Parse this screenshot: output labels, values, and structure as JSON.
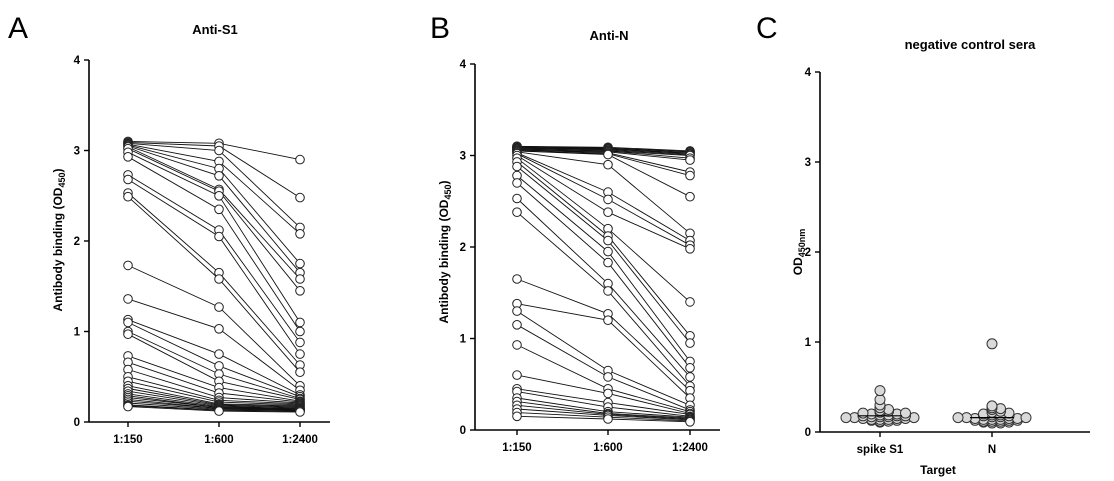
{
  "panels": [
    {
      "letter": "A",
      "title": "Anti-S1",
      "ylabel": "Antibody binding (OD",
      "ylabel_sub": "450",
      "ylabel_end": ")"
    },
    {
      "letter": "B",
      "title": "Anti-N",
      "ylabel": "Antibody binding (OD",
      "ylabel_sub": "450",
      "ylabel_end": ")"
    },
    {
      "letter": "C",
      "title": "negative control sera",
      "ylabel": "OD",
      "ylabel_sub": "450nm",
      "ylabel_end": "",
      "xlabel": "Target"
    }
  ],
  "chart_data": [
    {
      "type": "line",
      "title": "Anti-S1",
      "ylabel": "Antibody binding (OD450)",
      "xlabel": "",
      "categories": [
        "1:150",
        "1:600",
        "1:2400"
      ],
      "ylim": [
        0,
        4
      ],
      "yticks": [
        0,
        1,
        2,
        3,
        4
      ],
      "marker": "open circle",
      "grid": false,
      "series": [
        {
          "values": [
            3.1,
            3.08,
            2.9
          ]
        },
        {
          "values": [
            3.09,
            3.05,
            2.48
          ]
        },
        {
          "values": [
            3.08,
            3.0,
            2.15
          ]
        },
        {
          "values": [
            3.07,
            2.88,
            2.08
          ]
        },
        {
          "values": [
            3.06,
            2.8,
            1.75
          ]
        },
        {
          "values": [
            3.05,
            2.72,
            1.65
          ]
        },
        {
          "values": [
            3.04,
            2.57,
            1.58
          ]
        },
        {
          "values": [
            3.02,
            2.55,
            1.45
          ]
        },
        {
          "values": [
            2.98,
            2.5,
            1.1
          ]
        },
        {
          "values": [
            2.93,
            2.35,
            1.0
          ]
        },
        {
          "values": [
            2.73,
            2.12,
            0.88
          ]
        },
        {
          "values": [
            2.68,
            2.05,
            0.75
          ]
        },
        {
          "values": [
            2.53,
            1.65,
            0.63
          ]
        },
        {
          "values": [
            2.49,
            1.58,
            0.55
          ]
        },
        {
          "values": [
            1.73,
            1.27,
            0.4
          ]
        },
        {
          "values": [
            1.36,
            1.03,
            0.35
          ]
        },
        {
          "values": [
            1.13,
            0.75,
            0.3
          ]
        },
        {
          "values": [
            1.1,
            0.62,
            0.28
          ]
        },
        {
          "values": [
            1.0,
            0.53,
            0.26
          ]
        },
        {
          "values": [
            0.97,
            0.45,
            0.25
          ]
        },
        {
          "values": [
            0.73,
            0.38,
            0.23
          ]
        },
        {
          "values": [
            0.66,
            0.32,
            0.22
          ]
        },
        {
          "values": [
            0.58,
            0.27,
            0.21
          ]
        },
        {
          "values": [
            0.5,
            0.24,
            0.2
          ]
        },
        {
          "values": [
            0.45,
            0.22,
            0.19
          ]
        },
        {
          "values": [
            0.4,
            0.2,
            0.18
          ]
        },
        {
          "values": [
            0.37,
            0.19,
            0.17
          ]
        },
        {
          "values": [
            0.34,
            0.18,
            0.16
          ]
        },
        {
          "values": [
            0.31,
            0.17,
            0.15
          ]
        },
        {
          "values": [
            0.29,
            0.16,
            0.15
          ]
        },
        {
          "values": [
            0.27,
            0.16,
            0.14
          ]
        },
        {
          "values": [
            0.25,
            0.15,
            0.14
          ]
        },
        {
          "values": [
            0.23,
            0.15,
            0.13
          ]
        },
        {
          "values": [
            0.21,
            0.14,
            0.13
          ]
        },
        {
          "values": [
            0.19,
            0.13,
            0.12
          ]
        },
        {
          "values": [
            0.18,
            0.13,
            0.12
          ]
        },
        {
          "values": [
            0.17,
            0.12,
            0.11
          ]
        }
      ]
    },
    {
      "type": "line",
      "title": "Anti-N",
      "ylabel": "Antibody binding (OD450)",
      "xlabel": "",
      "categories": [
        "1:150",
        "1:600",
        "1:2400"
      ],
      "ylim": [
        0,
        4
      ],
      "yticks": [
        0,
        1,
        2,
        3,
        4
      ],
      "marker": "open circle",
      "grid": false,
      "series": [
        {
          "values": [
            3.1,
            3.09,
            3.05
          ]
        },
        {
          "values": [
            3.1,
            3.08,
            3.04
          ]
        },
        {
          "values": [
            3.09,
            3.08,
            3.04
          ]
        },
        {
          "values": [
            3.09,
            3.07,
            3.03
          ]
        },
        {
          "values": [
            3.08,
            3.07,
            3.02
          ]
        },
        {
          "values": [
            3.08,
            3.06,
            3.01
          ]
        },
        {
          "values": [
            3.07,
            3.05,
            3.0
          ]
        },
        {
          "values": [
            3.07,
            3.05,
            2.97
          ]
        },
        {
          "values": [
            3.06,
            3.04,
            2.95
          ]
        },
        {
          "values": [
            3.06,
            3.03,
            2.82
          ]
        },
        {
          "values": [
            3.05,
            3.02,
            2.78
          ]
        },
        {
          "values": [
            3.05,
            3.01,
            2.55
          ]
        },
        {
          "values": [
            3.04,
            2.9,
            2.15
          ]
        },
        {
          "values": [
            3.03,
            2.6,
            2.07
          ]
        },
        {
          "values": [
            3.02,
            2.52,
            2.02
          ]
        },
        {
          "values": [
            3.0,
            2.38,
            1.98
          ]
        },
        {
          "values": [
            2.97,
            2.2,
            1.4
          ]
        },
        {
          "values": [
            2.93,
            2.12,
            1.03
          ]
        },
        {
          "values": [
            2.88,
            2.07,
            0.95
          ]
        },
        {
          "values": [
            2.78,
            1.95,
            0.75
          ]
        },
        {
          "values": [
            2.7,
            1.83,
            0.68
          ]
        },
        {
          "values": [
            2.53,
            1.6,
            0.58
          ]
        },
        {
          "values": [
            2.38,
            1.52,
            0.48
          ]
        },
        {
          "values": [
            1.65,
            1.27,
            0.43
          ]
        },
        {
          "values": [
            1.38,
            1.2,
            0.35
          ]
        },
        {
          "values": [
            1.3,
            0.65,
            0.27
          ]
        },
        {
          "values": [
            1.15,
            0.58,
            0.22
          ]
        },
        {
          "values": [
            0.93,
            0.45,
            0.2
          ]
        },
        {
          "values": [
            0.6,
            0.4,
            0.18
          ]
        },
        {
          "values": [
            0.45,
            0.3,
            0.17
          ]
        },
        {
          "values": [
            0.42,
            0.25,
            0.15
          ]
        },
        {
          "values": [
            0.35,
            0.2,
            0.14
          ]
        },
        {
          "values": [
            0.31,
            0.18,
            0.13
          ]
        },
        {
          "values": [
            0.27,
            0.17,
            0.12
          ]
        },
        {
          "values": [
            0.23,
            0.16,
            0.11
          ]
        },
        {
          "values": [
            0.19,
            0.14,
            0.1
          ]
        },
        {
          "values": [
            0.15,
            0.12,
            0.09
          ]
        }
      ]
    },
    {
      "type": "scatter",
      "title": "negative control sera",
      "ylabel": "OD450nm",
      "xlabel": "Target",
      "categories": [
        "spike S1",
        "N"
      ],
      "ylim": [
        0,
        4
      ],
      "yticks": [
        0,
        1,
        2,
        3,
        4
      ],
      "marker": "open circle (light grey fill)",
      "grid": false,
      "series": [
        {
          "category": "spike S1",
          "values": [
            0.46,
            0.36,
            0.3,
            0.27,
            0.25,
            0.24,
            0.23,
            0.22,
            0.21,
            0.21,
            0.2,
            0.2,
            0.19,
            0.19,
            0.18,
            0.18,
            0.18,
            0.17,
            0.17,
            0.17,
            0.16,
            0.16,
            0.16,
            0.15,
            0.15,
            0.15,
            0.14,
            0.14,
            0.14,
            0.13,
            0.13,
            0.12,
            0.12,
            0.11
          ]
        },
        {
          "category": "N",
          "values": [
            0.98,
            0.29,
            0.27,
            0.26,
            0.25,
            0.23,
            0.22,
            0.21,
            0.2,
            0.19,
            0.19,
            0.18,
            0.18,
            0.17,
            0.17,
            0.16,
            0.16,
            0.16,
            0.15,
            0.15,
            0.15,
            0.14,
            0.14,
            0.14,
            0.13,
            0.13,
            0.13,
            0.12,
            0.12,
            0.12,
            0.11,
            0.11,
            0.1,
            0.1
          ]
        }
      ]
    }
  ]
}
